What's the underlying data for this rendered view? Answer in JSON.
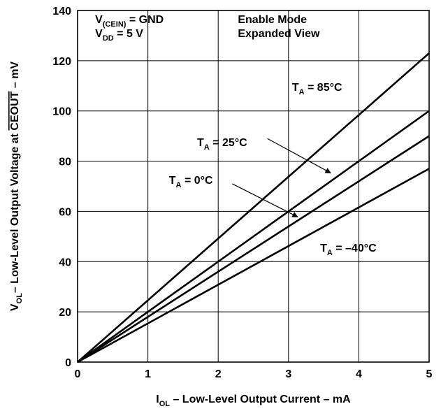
{
  "chart_data": {
    "type": "line",
    "title": "",
    "xlabel": {
      "main": "I",
      "sub": "OL",
      "rest": " – Low-Level Output Current – mA"
    },
    "ylabel": {
      "main": "V",
      "sub": "OL",
      "rest": "– Low-Level Output Voltage at ",
      "over": "CEOUT",
      "tail": " – mV"
    },
    "xlim": [
      0,
      5
    ],
    "ylim": [
      0,
      140
    ],
    "xticks": [
      0,
      1,
      2,
      3,
      4,
      5
    ],
    "yticks": [
      0,
      20,
      40,
      60,
      80,
      100,
      120,
      140
    ],
    "grid": true,
    "conditions": [
      {
        "main": "V",
        "sub": "(CEIN)",
        "rest": " = GND"
      },
      {
        "main": "V",
        "sub": "DD",
        "rest": " = 5 V"
      }
    ],
    "mode_text": [
      "Enable Mode",
      "Expanded View"
    ],
    "series": [
      {
        "name": {
          "main": "T",
          "sub": "A",
          "rest": " = 85°C"
        },
        "x": [
          0,
          5
        ],
        "y": [
          0,
          123
        ]
      },
      {
        "name": {
          "main": "T",
          "sub": "A",
          "rest": " = 25°C"
        },
        "x": [
          0,
          5
        ],
        "y": [
          0,
          100
        ]
      },
      {
        "name": {
          "main": "T",
          "sub": "A",
          "rest": " = 0°C"
        },
        "x": [
          0,
          5
        ],
        "y": [
          0,
          90
        ]
      },
      {
        "name": {
          "main": "T",
          "sub": "A",
          "rest": " = –40°C"
        },
        "x": [
          0,
          5
        ],
        "y": [
          0,
          77
        ]
      }
    ],
    "series_label_placement": [
      {
        "x": 3.05,
        "y": 108
      },
      {
        "x": 1.7,
        "y": 86
      },
      {
        "x": 1.3,
        "y": 71
      },
      {
        "x": 3.45,
        "y": 44
      }
    ],
    "pointer_arrows": [
      {
        "from": [
          2.7,
          89
        ],
        "to": [
          3.6,
          75.3
        ]
      },
      {
        "from": [
          2.2,
          71
        ],
        "to": [
          3.13,
          57.8
        ]
      }
    ]
  }
}
